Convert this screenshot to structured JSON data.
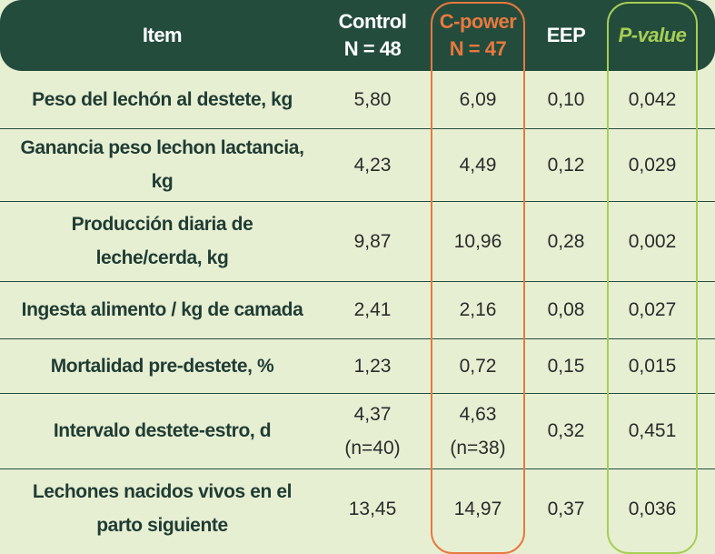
{
  "header": {
    "item": "Item",
    "control": [
      "Control",
      "N = 48"
    ],
    "cpower": [
      "C-power",
      "N = 47"
    ],
    "eep": "EEP",
    "pvalue": "P-value"
  },
  "rows": [
    {
      "item": [
        "Peso del lechón al destete, kg"
      ],
      "control": [
        "5,80"
      ],
      "cpower": [
        "6,09"
      ],
      "eep": "0,10",
      "pvalue": "0,042"
    },
    {
      "item": [
        "Ganancia peso lechon lactancia,",
        "kg"
      ],
      "control": [
        "4,23"
      ],
      "cpower": [
        "4,49"
      ],
      "eep": "0,12",
      "pvalue": "0,029"
    },
    {
      "item": [
        "Producción diaria de",
        "leche/cerda, kg"
      ],
      "control": [
        "9,87"
      ],
      "cpower": [
        "10,96"
      ],
      "eep": "0,28",
      "pvalue": "0,002"
    },
    {
      "item": [
        "Ingesta alimento / kg de camada"
      ],
      "control": [
        "2,41"
      ],
      "cpower": [
        "2,16"
      ],
      "eep": "0,08",
      "pvalue": "0,027"
    },
    {
      "item": [
        "Mortalidad pre-destete, %"
      ],
      "control": [
        "1,23"
      ],
      "cpower": [
        "0,72"
      ],
      "eep": "0,15",
      "pvalue": "0,015"
    },
    {
      "item": [
        "Intervalo destete-estro, d"
      ],
      "control": [
        "4,37",
        "(n=40)"
      ],
      "cpower": [
        "4,63",
        "(n=38)"
      ],
      "eep": "0,32",
      "pvalue": "0,451"
    },
    {
      "item": [
        "Lechones nacidos vivos en el",
        "parto siguiente"
      ],
      "control": [
        "13,45"
      ],
      "cpower": [
        "14,97"
      ],
      "eep": "0,37",
      "pvalue": "0,036"
    }
  ],
  "colors": {
    "header_bg": "#234c3d",
    "body_bg": "#e7efd3",
    "cpower_accent": "#e7793f",
    "pvalue_accent": "#a6ce55"
  }
}
